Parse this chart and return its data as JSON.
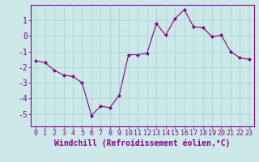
{
  "x": [
    0,
    1,
    2,
    3,
    4,
    5,
    6,
    7,
    8,
    9,
    10,
    11,
    12,
    13,
    14,
    15,
    16,
    17,
    18,
    19,
    20,
    21,
    22,
    23
  ],
  "y": [
    -1.6,
    -1.7,
    -2.2,
    -2.5,
    -2.6,
    -3.0,
    -5.1,
    -4.5,
    -4.6,
    -3.8,
    -1.2,
    -1.2,
    -1.1,
    0.8,
    0.05,
    1.1,
    1.7,
    0.6,
    0.55,
    -0.05,
    0.05,
    -1.0,
    -1.4,
    -1.5
  ],
  "line_color": "#880088",
  "marker": "D",
  "marker_size": 2.0,
  "bg_color": "#cce8e8",
  "grid_color": "#aad4d4",
  "xlabel": "Windchill (Refroidissement éolien,°C)",
  "xlabel_color": "#880088",
  "xlim": [
    -0.5,
    23.5
  ],
  "ylim": [
    -5.8,
    2.0
  ],
  "yticks": [
    1,
    0,
    -1,
    -2,
    -3,
    -4,
    -5
  ],
  "xtick_labels": [
    "0",
    "1",
    "2",
    "3",
    "4",
    "5",
    "6",
    "7",
    "8",
    "9",
    "10",
    "11",
    "12",
    "13",
    "14",
    "15",
    "16",
    "17",
    "18",
    "19",
    "20",
    "21",
    "22",
    "23"
  ],
  "tick_color": "#880088",
  "spine_color": "#880088",
  "ytick_fontsize": 7,
  "xtick_fontsize": 6,
  "xlabel_fontsize": 7
}
